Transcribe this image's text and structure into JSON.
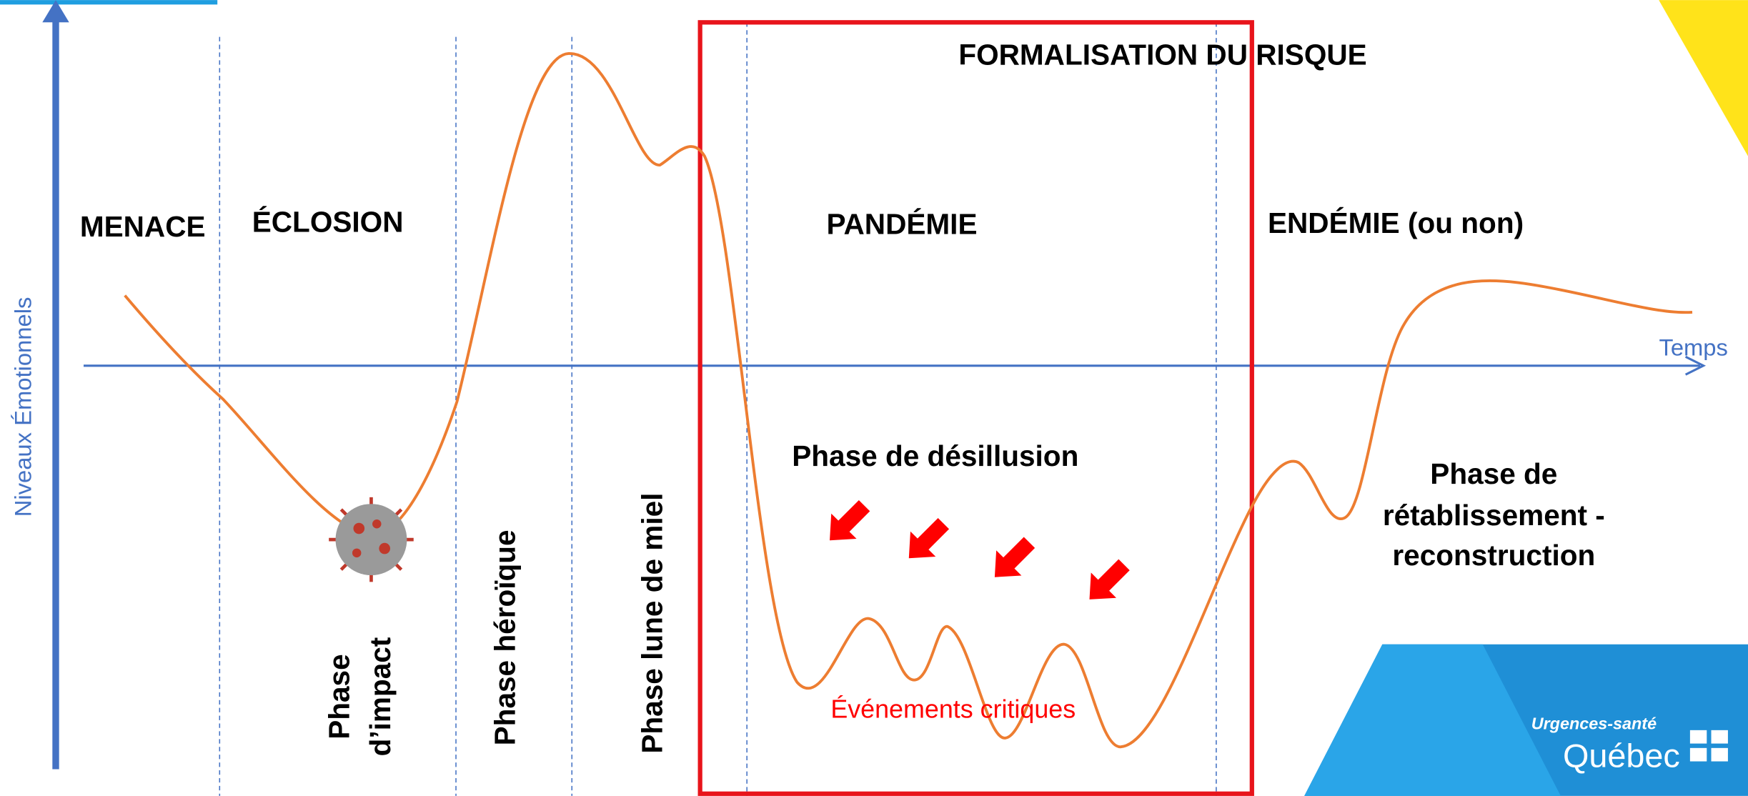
{
  "axes": {
    "y_label": "Niveaux Émotionnels",
    "x_label": "Temps"
  },
  "risk_box": {
    "title": "FORMALISATION DU RISQUE"
  },
  "periods": [
    "MENACE",
    "ÉCLOSION",
    "PANDÉMIE",
    "ENDÉMIE (ou non)"
  ],
  "phases": {
    "impact": [
      "Phase",
      "d’impact"
    ],
    "heroique": "Phase héroïque",
    "lune_de_miel": "Phase lune de miel",
    "desillusion": "Phase de désillusion",
    "retablissement": [
      "Phase de",
      "rétablissement -",
      "reconstruction"
    ]
  },
  "annotation": "Événements critiques",
  "logo": {
    "line1": "Urgences-santé",
    "line2": "Québec"
  }
}
